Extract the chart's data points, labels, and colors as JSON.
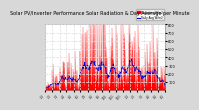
{
  "title": "Solar PV/Inverter Performance Solar Radiation & Day Average per Minute",
  "title_fontsize": 3.5,
  "bg_color": "#d8d8d8",
  "plot_bg_color": "#ffffff",
  "bar_color": "#ff0000",
  "avg_line_color": "#0000cc",
  "legend_labels": [
    "Radiation W/m2",
    "Daily Avg W/m2"
  ],
  "legend_colors": [
    "#ff0000",
    "#0000cc"
  ],
  "ylim": [
    0,
    800
  ],
  "yticks": [
    100,
    200,
    300,
    400,
    500,
    600,
    700,
    800
  ],
  "grid_color": "#dddddd",
  "grid_style": "--",
  "n_points": 350,
  "seed": 7
}
